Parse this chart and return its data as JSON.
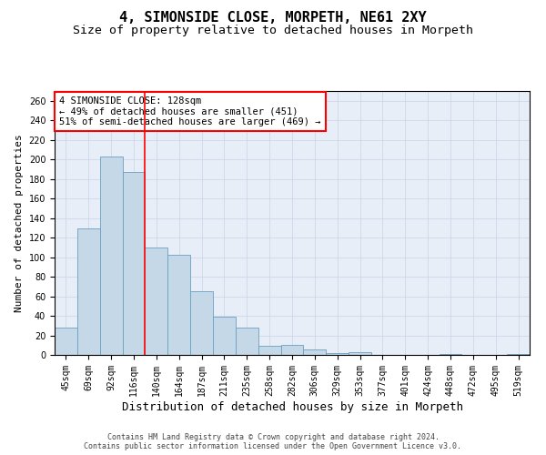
{
  "title": "4, SIMONSIDE CLOSE, MORPETH, NE61 2XY",
  "subtitle": "Size of property relative to detached houses in Morpeth",
  "xlabel": "Distribution of detached houses by size in Morpeth",
  "ylabel": "Number of detached properties",
  "categories": [
    "45sqm",
    "69sqm",
    "92sqm",
    "116sqm",
    "140sqm",
    "164sqm",
    "187sqm",
    "211sqm",
    "235sqm",
    "258sqm",
    "282sqm",
    "306sqm",
    "329sqm",
    "353sqm",
    "377sqm",
    "401sqm",
    "424sqm",
    "448sqm",
    "472sqm",
    "495sqm",
    "519sqm"
  ],
  "values": [
    28,
    129,
    203,
    187,
    110,
    102,
    65,
    39,
    28,
    9,
    10,
    6,
    2,
    3,
    0,
    0,
    0,
    1,
    0,
    0,
    1
  ],
  "bar_color": "#c5d8e8",
  "bar_edge_color": "#6a9fc0",
  "annotation_text": "4 SIMONSIDE CLOSE: 128sqm\n← 49% of detached houses are smaller (451)\n51% of semi-detached houses are larger (469) →",
  "annotation_box_color": "white",
  "annotation_box_edge_color": "red",
  "vline_color": "red",
  "vline_x_index": 3.5,
  "ylim": [
    0,
    270
  ],
  "yticks": [
    0,
    20,
    40,
    60,
    80,
    100,
    120,
    140,
    160,
    180,
    200,
    220,
    240,
    260
  ],
  "grid_color": "#c8d4e8",
  "bg_color": "#e8eef8",
  "footer": "Contains HM Land Registry data © Crown copyright and database right 2024.\nContains public sector information licensed under the Open Government Licence v3.0.",
  "title_fontsize": 11,
  "subtitle_fontsize": 9.5,
  "xlabel_fontsize": 9,
  "ylabel_fontsize": 8,
  "tick_fontsize": 7,
  "annotation_fontsize": 7.5,
  "footer_fontsize": 6
}
